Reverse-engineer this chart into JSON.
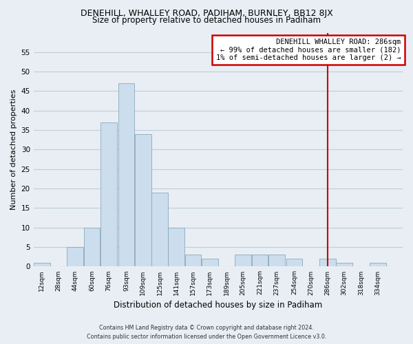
{
  "title": "DENEHILL, WHALLEY ROAD, PADIHAM, BURNLEY, BB12 8JX",
  "subtitle": "Size of property relative to detached houses in Padiham",
  "xlabel": "Distribution of detached houses by size in Padiham",
  "ylabel": "Number of detached properties",
  "bin_labels": [
    "12sqm",
    "28sqm",
    "44sqm",
    "60sqm",
    "76sqm",
    "93sqm",
    "109sqm",
    "125sqm",
    "141sqm",
    "157sqm",
    "173sqm",
    "189sqm",
    "205sqm",
    "221sqm",
    "237sqm",
    "254sqm",
    "270sqm",
    "286sqm",
    "302sqm",
    "318sqm",
    "334sqm"
  ],
  "bin_left_edges": [
    4,
    20,
    36,
    52,
    68,
    85,
    101,
    117,
    133,
    149,
    165,
    181,
    197,
    213,
    229,
    246,
    262,
    278,
    294,
    310,
    326
  ],
  "bin_width": 16,
  "bar_heights": [
    1,
    0,
    5,
    10,
    37,
    47,
    34,
    19,
    10,
    3,
    2,
    0,
    3,
    3,
    3,
    2,
    0,
    2,
    1,
    0,
    1
  ],
  "bar_color": "#ccdded",
  "bar_edge_color": "#88aabb",
  "vline_x": 286,
  "vline_color": "#cc0000",
  "annotation_title": "DENEHILL WHALLEY ROAD: 286sqm",
  "annotation_line1": "← 99% of detached houses are smaller (182)",
  "annotation_line2": "1% of semi-detached houses are larger (2) →",
  "annotation_box_color": "#cc0000",
  "ylim": [
    0,
    60
  ],
  "yticks": [
    0,
    5,
    10,
    15,
    20,
    25,
    30,
    35,
    40,
    45,
    50,
    55
  ],
  "footer_line1": "Contains HM Land Registry data © Crown copyright and database right 2024.",
  "footer_line2": "Contains public sector information licensed under the Open Government Licence v3.0.",
  "bg_color": "#e8eef4",
  "plot_bg_color": "#e8eef4",
  "grid_color": "#c0ccd8"
}
